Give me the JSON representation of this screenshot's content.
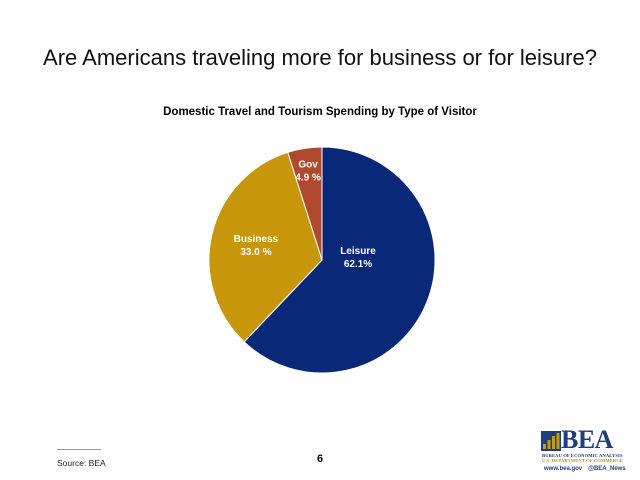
{
  "slide": {
    "title": "Are Americans traveling more for business or for leisure?",
    "source": "Source: BEA",
    "page_number": "6"
  },
  "logo": {
    "name": "BEA",
    "line1": "BUREAU OF ECONOMIC ANALYSIS",
    "line2": "U.S. DEPARTMENT OF COMMERCE",
    "website": "www.bea.gov",
    "twitter": "@BEA_News",
    "colors": {
      "navy": "#1f3f7a",
      "gold": "#c49a18"
    }
  },
  "chart_data": {
    "type": "pie",
    "title": "Domestic Travel and Tourism Spending by Type of Visitor",
    "start_angle_deg": 0,
    "direction": "clockwise",
    "slices": [
      {
        "label": "Leisure",
        "value": 62.1,
        "value_label": "62.1%",
        "color": "#0a2878"
      },
      {
        "label": "Business",
        "value": 33.0,
        "value_label": "33.0 %",
        "color": "#c8960a"
      },
      {
        "label": "Gov",
        "value": 4.9,
        "value_label": "4.9 %",
        "color": "#b04a2e"
      }
    ]
  }
}
